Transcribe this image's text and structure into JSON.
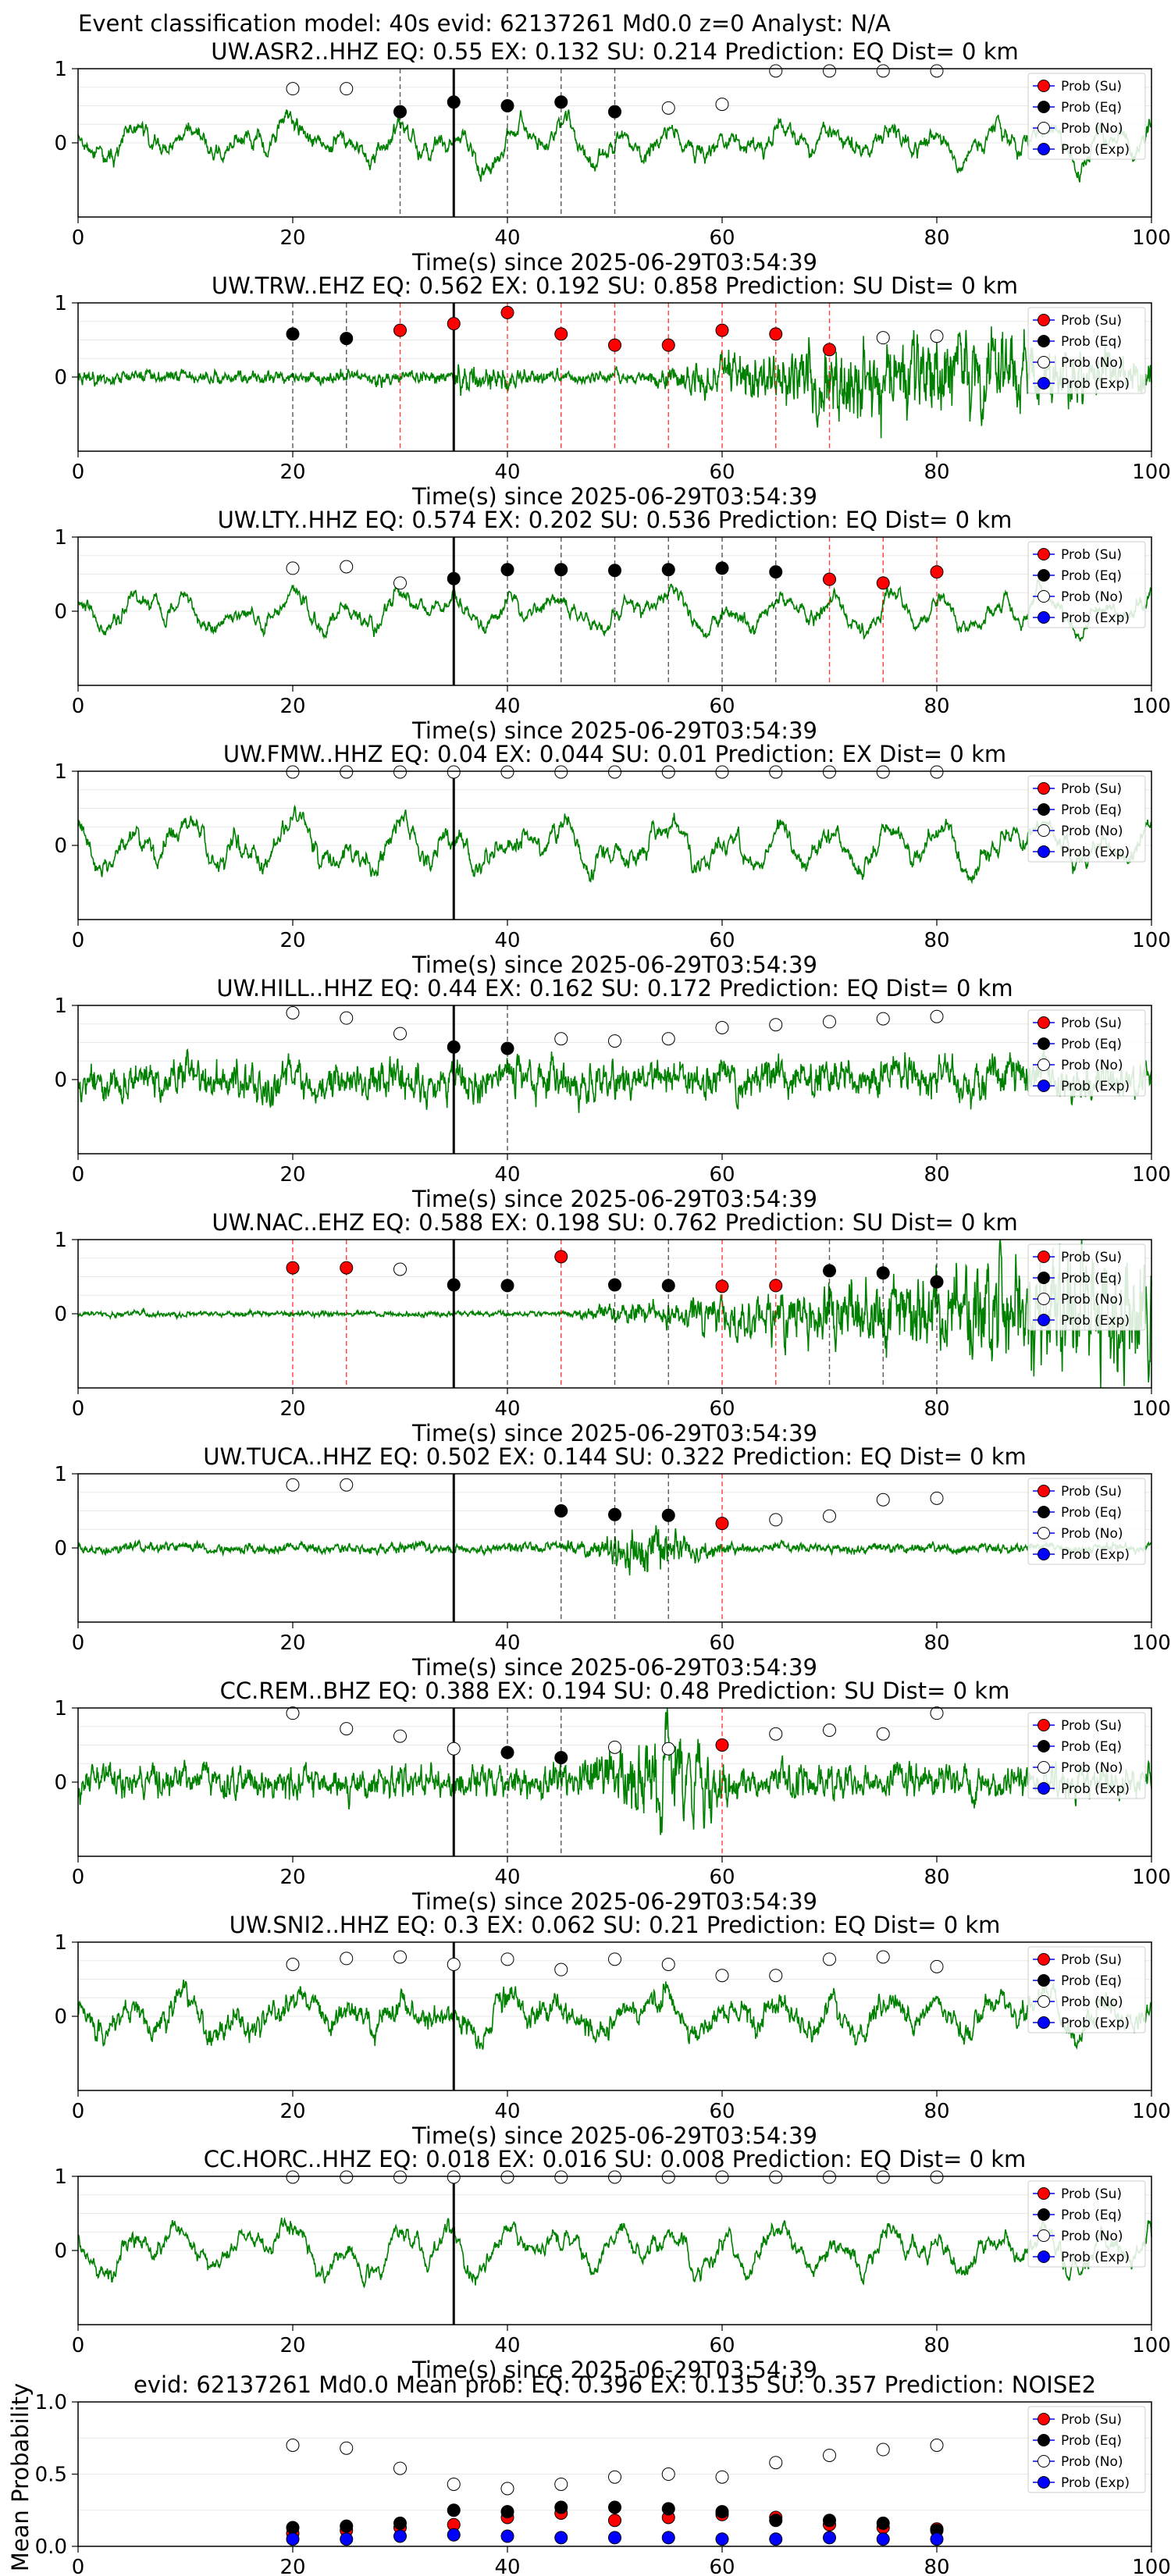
{
  "suptitle": "Event classification model: 40s evid: 62137261 Md0.0 z=0 Analyst: N/A",
  "legend_labels": [
    "Prob (Su)",
    "Prob (Eq)",
    "Prob (No)",
    "Prob (Exp)"
  ],
  "colors": {
    "waveform": "#008000",
    "su": "#ff0000",
    "eq": "#000000",
    "no": "#ffffff",
    "exp": "#0000ff",
    "eq_line": "#000000",
    "su_line": "#ff0000",
    "pick_line": "#000000"
  },
  "chart_data": [
    {
      "type": "line",
      "title": "UW.ASR2..HHZ   EQ: 0.55  EX: 0.132  SU: 0.214   Prediction: EQ    Dist= 0 km",
      "xlabel": "Time(s) since 2025-06-29T03:54:39",
      "xlim": [
        0,
        100
      ],
      "ylim": [
        -1,
        1
      ],
      "xticks": [
        0,
        20,
        40,
        60,
        80,
        100
      ],
      "yticks": [
        1,
        0
      ],
      "pick_time": 35,
      "markers": [
        {
          "t": 20,
          "cls": "no",
          "p": 0.73
        },
        {
          "t": 25,
          "cls": "no",
          "p": 0.73
        },
        {
          "t": 30,
          "cls": "eq",
          "p": 0.42
        },
        {
          "t": 35,
          "cls": "eq",
          "p": 0.55
        },
        {
          "t": 40,
          "cls": "eq",
          "p": 0.5
        },
        {
          "t": 45,
          "cls": "eq",
          "p": 0.55
        },
        {
          "t": 50,
          "cls": "eq",
          "p": 0.42
        },
        {
          "t": 55,
          "cls": "no",
          "p": 0.47
        },
        {
          "t": 60,
          "cls": "no",
          "p": 0.52
        },
        {
          "t": 65,
          "cls": "no",
          "p": 0.97
        },
        {
          "t": 70,
          "cls": "no",
          "p": 0.97
        },
        {
          "t": 75,
          "cls": "no",
          "p": 0.97
        },
        {
          "t": 80,
          "cls": "no",
          "p": 0.97
        }
      ],
      "waveform": {
        "style": "mixed",
        "seed": 11,
        "amp": 0.5
      }
    },
    {
      "type": "line",
      "title": "UW.TRW..EHZ   EQ: 0.562  EX: 0.192  SU: 0.858   Prediction: SU    Dist= 0 km",
      "xlabel": "Time(s) since 2025-06-29T03:54:39",
      "xlim": [
        0,
        100
      ],
      "ylim": [
        -1,
        1
      ],
      "xticks": [
        0,
        20,
        40,
        60,
        80,
        100
      ],
      "yticks": [
        1,
        0
      ],
      "pick_time": 35,
      "markers": [
        {
          "t": 20,
          "cls": "eq",
          "p": 0.58
        },
        {
          "t": 25,
          "cls": "eq",
          "p": 0.52
        },
        {
          "t": 30,
          "cls": "su",
          "p": 0.63
        },
        {
          "t": 35,
          "cls": "su",
          "p": 0.72
        },
        {
          "t": 40,
          "cls": "su",
          "p": 0.87
        },
        {
          "t": 45,
          "cls": "su",
          "p": 0.58
        },
        {
          "t": 50,
          "cls": "su",
          "p": 0.43
        },
        {
          "t": 55,
          "cls": "su",
          "p": 0.43
        },
        {
          "t": 60,
          "cls": "su",
          "p": 0.63
        },
        {
          "t": 65,
          "cls": "su",
          "p": 0.58
        },
        {
          "t": 70,
          "cls": "su",
          "p": 0.37
        },
        {
          "t": 75,
          "cls": "no",
          "p": 0.53
        },
        {
          "t": 80,
          "cls": "no",
          "p": 0.55
        }
      ],
      "waveform": {
        "style": "surface",
        "seed": 23,
        "amp": 0.7
      }
    },
    {
      "type": "line",
      "title": "UW.LTY..HHZ   EQ: 0.574  EX: 0.202  SU: 0.536   Prediction: EQ    Dist= 0 km",
      "xlabel": "Time(s) since 2025-06-29T03:54:39",
      "xlim": [
        0,
        100
      ],
      "ylim": [
        -1,
        1
      ],
      "xticks": [
        0,
        20,
        40,
        60,
        80,
        100
      ],
      "yticks": [
        1,
        0
      ],
      "pick_time": 35,
      "markers": [
        {
          "t": 20,
          "cls": "no",
          "p": 0.58
        },
        {
          "t": 25,
          "cls": "no",
          "p": 0.6
        },
        {
          "t": 30,
          "cls": "no",
          "p": 0.38
        },
        {
          "t": 35,
          "cls": "eq",
          "p": 0.44
        },
        {
          "t": 40,
          "cls": "eq",
          "p": 0.56
        },
        {
          "t": 45,
          "cls": "eq",
          "p": 0.56
        },
        {
          "t": 50,
          "cls": "eq",
          "p": 0.55
        },
        {
          "t": 55,
          "cls": "eq",
          "p": 0.56
        },
        {
          "t": 60,
          "cls": "eq",
          "p": 0.58
        },
        {
          "t": 65,
          "cls": "eq",
          "p": 0.53
        },
        {
          "t": 70,
          "cls": "su",
          "p": 0.43
        },
        {
          "t": 75,
          "cls": "su",
          "p": 0.38
        },
        {
          "t": 80,
          "cls": "su",
          "p": 0.53
        }
      ],
      "waveform": {
        "style": "smooth",
        "seed": 37,
        "amp": 0.45
      }
    },
    {
      "type": "line",
      "title": "UW.FMW..HHZ   EQ: 0.04  EX: 0.044  SU: 0.01   Prediction: EX    Dist= 0 km",
      "xlabel": "Time(s) since 2025-06-29T03:54:39",
      "xlim": [
        0,
        100
      ],
      "ylim": [
        -1,
        1
      ],
      "xticks": [
        0,
        20,
        40,
        60,
        80,
        100
      ],
      "yticks": [
        1,
        0
      ],
      "pick_time": 35,
      "markers": [
        {
          "t": 20,
          "cls": "no",
          "p": 0.99
        },
        {
          "t": 25,
          "cls": "no",
          "p": 0.99
        },
        {
          "t": 30,
          "cls": "no",
          "p": 0.99
        },
        {
          "t": 35,
          "cls": "no",
          "p": 0.99
        },
        {
          "t": 40,
          "cls": "no",
          "p": 0.99
        },
        {
          "t": 45,
          "cls": "no",
          "p": 0.99
        },
        {
          "t": 50,
          "cls": "no",
          "p": 0.99
        },
        {
          "t": 55,
          "cls": "no",
          "p": 0.99
        },
        {
          "t": 60,
          "cls": "no",
          "p": 0.99
        },
        {
          "t": 65,
          "cls": "no",
          "p": 0.99
        },
        {
          "t": 70,
          "cls": "no",
          "p": 0.99
        },
        {
          "t": 75,
          "cls": "no",
          "p": 0.99
        },
        {
          "t": 80,
          "cls": "no",
          "p": 0.99
        }
      ],
      "waveform": {
        "style": "smooth",
        "seed": 41,
        "amp": 0.6
      }
    },
    {
      "type": "line",
      "title": "UW.HILL..HHZ   EQ: 0.44  EX: 0.162  SU: 0.172   Prediction: EQ    Dist= 0 km",
      "xlabel": "Time(s) since 2025-06-29T03:54:39",
      "xlim": [
        0,
        100
      ],
      "ylim": [
        -1,
        1
      ],
      "xticks": [
        0,
        20,
        40,
        60,
        80,
        100
      ],
      "yticks": [
        1,
        0
      ],
      "pick_time": 35,
      "markers": [
        {
          "t": 20,
          "cls": "no",
          "p": 0.9
        },
        {
          "t": 25,
          "cls": "no",
          "p": 0.83
        },
        {
          "t": 30,
          "cls": "no",
          "p": 0.62
        },
        {
          "t": 35,
          "cls": "eq",
          "p": 0.44
        },
        {
          "t": 40,
          "cls": "eq",
          "p": 0.42
        },
        {
          "t": 45,
          "cls": "no",
          "p": 0.55
        },
        {
          "t": 50,
          "cls": "no",
          "p": 0.52
        },
        {
          "t": 55,
          "cls": "no",
          "p": 0.55
        },
        {
          "t": 60,
          "cls": "no",
          "p": 0.7
        },
        {
          "t": 65,
          "cls": "no",
          "p": 0.74
        },
        {
          "t": 70,
          "cls": "no",
          "p": 0.78
        },
        {
          "t": 75,
          "cls": "no",
          "p": 0.82
        },
        {
          "t": 80,
          "cls": "no",
          "p": 0.85
        }
      ],
      "waveform": {
        "style": "noisy",
        "seed": 53,
        "amp": 0.45
      }
    },
    {
      "type": "line",
      "title": "UW.NAC..EHZ   EQ: 0.588  EX: 0.198  SU: 0.762   Prediction: SU    Dist= 0 km",
      "xlabel": "Time(s) since 2025-06-29T03:54:39",
      "xlim": [
        0,
        100
      ],
      "ylim": [
        -1,
        1
      ],
      "xticks": [
        0,
        20,
        40,
        60,
        80,
        100
      ],
      "yticks": [
        1,
        0
      ],
      "pick_time": 35,
      "markers": [
        {
          "t": 20,
          "cls": "su",
          "p": 0.62
        },
        {
          "t": 25,
          "cls": "su",
          "p": 0.62
        },
        {
          "t": 30,
          "cls": "no",
          "p": 0.6
        },
        {
          "t": 35,
          "cls": "eq",
          "p": 0.39
        },
        {
          "t": 40,
          "cls": "eq",
          "p": 0.38
        },
        {
          "t": 45,
          "cls": "su",
          "p": 0.77
        },
        {
          "t": 50,
          "cls": "eq",
          "p": 0.39
        },
        {
          "t": 55,
          "cls": "eq",
          "p": 0.38
        },
        {
          "t": 60,
          "cls": "su",
          "p": 0.37
        },
        {
          "t": 65,
          "cls": "su",
          "p": 0.38
        },
        {
          "t": 70,
          "cls": "eq",
          "p": 0.58
        },
        {
          "t": 75,
          "cls": "eq",
          "p": 0.55
        },
        {
          "t": 80,
          "cls": "eq",
          "p": 0.43
        }
      ],
      "waveform": {
        "style": "growing",
        "seed": 67,
        "amp": 0.7
      }
    },
    {
      "type": "line",
      "title": "UW.TUCA..HHZ   EQ: 0.502  EX: 0.144  SU: 0.322   Prediction: EQ    Dist= 0 km",
      "xlabel": "Time(s) since 2025-06-29T03:54:39",
      "xlim": [
        0,
        100
      ],
      "ylim": [
        -1,
        1
      ],
      "xticks": [
        0,
        20,
        40,
        60,
        80,
        100
      ],
      "yticks": [
        1,
        0
      ],
      "pick_time": 35,
      "markers": [
        {
          "t": 20,
          "cls": "no",
          "p": 0.85
        },
        {
          "t": 25,
          "cls": "no",
          "p": 0.85
        },
        {
          "t": 45,
          "cls": "eq",
          "p": 0.5
        },
        {
          "t": 50,
          "cls": "eq",
          "p": 0.45
        },
        {
          "t": 55,
          "cls": "eq",
          "p": 0.44
        },
        {
          "t": 60,
          "cls": "su",
          "p": 0.33
        },
        {
          "t": 65,
          "cls": "no",
          "p": 0.38
        },
        {
          "t": 70,
          "cls": "no",
          "p": 0.43
        },
        {
          "t": 75,
          "cls": "no",
          "p": 0.65
        },
        {
          "t": 80,
          "cls": "no",
          "p": 0.67
        }
      ],
      "waveform": {
        "style": "burst",
        "seed": 79,
        "amp": 0.3
      }
    },
    {
      "type": "line",
      "title": "CC.REM..BHZ   EQ: 0.388  EX: 0.194  SU: 0.48   Prediction: SU    Dist= 0 km",
      "xlabel": "Time(s) since 2025-06-29T03:54:39",
      "xlim": [
        0,
        100
      ],
      "ylim": [
        -1,
        1
      ],
      "xticks": [
        0,
        20,
        40,
        60,
        80,
        100
      ],
      "yticks": [
        1,
        0
      ],
      "pick_time": 35,
      "markers": [
        {
          "t": 20,
          "cls": "no",
          "p": 0.93
        },
        {
          "t": 25,
          "cls": "no",
          "p": 0.72
        },
        {
          "t": 30,
          "cls": "no",
          "p": 0.62
        },
        {
          "t": 35,
          "cls": "no",
          "p": 0.45
        },
        {
          "t": 40,
          "cls": "eq",
          "p": 0.4
        },
        {
          "t": 45,
          "cls": "eq",
          "p": 0.33
        },
        {
          "t": 50,
          "cls": "no",
          "p": 0.47
        },
        {
          "t": 55,
          "cls": "no",
          "p": 0.45
        },
        {
          "t": 60,
          "cls": "su",
          "p": 0.5
        },
        {
          "t": 65,
          "cls": "no",
          "p": 0.65
        },
        {
          "t": 70,
          "cls": "no",
          "p": 0.7
        },
        {
          "t": 75,
          "cls": "no",
          "p": 0.65
        },
        {
          "t": 80,
          "cls": "no",
          "p": 0.93
        }
      ],
      "waveform": {
        "style": "burstnoisy",
        "seed": 97,
        "amp": 0.45
      }
    },
    {
      "type": "line",
      "title": "UW.SNI2..HHZ   EQ: 0.3  EX: 0.062  SU: 0.21   Prediction: EQ    Dist= 0 km",
      "xlabel": "Time(s) since 2025-06-29T03:54:39",
      "xlim": [
        0,
        100
      ],
      "ylim": [
        -1,
        1
      ],
      "xticks": [
        0,
        20,
        40,
        60,
        80,
        100
      ],
      "yticks": [
        1,
        0
      ],
      "pick_time": 35,
      "markers": [
        {
          "t": 20,
          "cls": "no",
          "p": 0.7
        },
        {
          "t": 25,
          "cls": "no",
          "p": 0.78
        },
        {
          "t": 30,
          "cls": "no",
          "p": 0.8
        },
        {
          "t": 35,
          "cls": "no",
          "p": 0.7
        },
        {
          "t": 40,
          "cls": "no",
          "p": 0.77
        },
        {
          "t": 45,
          "cls": "no",
          "p": 0.63
        },
        {
          "t": 50,
          "cls": "no",
          "p": 0.77
        },
        {
          "t": 55,
          "cls": "no",
          "p": 0.7
        },
        {
          "t": 60,
          "cls": "no",
          "p": 0.55
        },
        {
          "t": 65,
          "cls": "no",
          "p": 0.55
        },
        {
          "t": 70,
          "cls": "no",
          "p": 0.77
        },
        {
          "t": 75,
          "cls": "no",
          "p": 0.8
        },
        {
          "t": 80,
          "cls": "no",
          "p": 0.67
        }
      ],
      "waveform": {
        "style": "smoothnoisy",
        "seed": 109,
        "amp": 0.55
      }
    },
    {
      "type": "line",
      "title": "CC.HORC..HHZ   EQ: 0.018  EX: 0.016  SU: 0.008   Prediction: EQ    Dist= 0 km",
      "xlabel": "Time(s) since 2025-06-29T03:54:39",
      "xlim": [
        0,
        100
      ],
      "ylim": [
        -1,
        1
      ],
      "xticks": [
        0,
        20,
        40,
        60,
        80,
        100
      ],
      "yticks": [
        1,
        0
      ],
      "pick_time": 35,
      "markers": [
        {
          "t": 20,
          "cls": "no",
          "p": 0.99
        },
        {
          "t": 25,
          "cls": "no",
          "p": 0.99
        },
        {
          "t": 30,
          "cls": "no",
          "p": 0.99
        },
        {
          "t": 35,
          "cls": "no",
          "p": 0.99
        },
        {
          "t": 40,
          "cls": "no",
          "p": 0.99
        },
        {
          "t": 45,
          "cls": "no",
          "p": 0.99
        },
        {
          "t": 50,
          "cls": "no",
          "p": 0.99
        },
        {
          "t": 55,
          "cls": "no",
          "p": 0.99
        },
        {
          "t": 60,
          "cls": "no",
          "p": 0.99
        },
        {
          "t": 65,
          "cls": "no",
          "p": 0.99
        },
        {
          "t": 70,
          "cls": "no",
          "p": 0.99
        },
        {
          "t": 75,
          "cls": "no",
          "p": 0.99
        },
        {
          "t": 80,
          "cls": "no",
          "p": 0.99
        }
      ],
      "waveform": {
        "style": "smooth",
        "seed": 127,
        "amp": 0.55
      }
    },
    {
      "type": "scatter",
      "title": "evid: 62137261  Md0.0   Mean prob:   EQ: 0.396  EX: 0.135  SU: 0.357   Prediction: NOISE2",
      "ylabel": "Mean Probability",
      "xlim": [
        0,
        100
      ],
      "ylim": [
        0,
        1
      ],
      "xticks": [
        0,
        20,
        40,
        60,
        80,
        100
      ],
      "yticks": [
        1.0,
        0.5,
        0.0
      ],
      "ytick_labels": [
        "1.0",
        "0.5",
        "0.0"
      ],
      "x": [
        20,
        25,
        30,
        35,
        40,
        45,
        50,
        55,
        60,
        65,
        70,
        75,
        80
      ],
      "series": [
        {
          "name": "Prob (Su)",
          "cls": "su",
          "values": [
            0.09,
            0.11,
            0.13,
            0.15,
            0.2,
            0.23,
            0.18,
            0.2,
            0.22,
            0.2,
            0.15,
            0.13,
            0.12
          ]
        },
        {
          "name": "Prob (Eq)",
          "cls": "eq",
          "values": [
            0.13,
            0.14,
            0.16,
            0.25,
            0.24,
            0.27,
            0.27,
            0.26,
            0.24,
            0.18,
            0.18,
            0.16,
            0.11
          ]
        },
        {
          "name": "Prob (No)",
          "cls": "no",
          "values": [
            0.7,
            0.68,
            0.54,
            0.43,
            0.4,
            0.43,
            0.48,
            0.5,
            0.48,
            0.58,
            0.63,
            0.67,
            0.7
          ]
        },
        {
          "name": "Prob (Exp)",
          "cls": "exp",
          "values": [
            0.05,
            0.05,
            0.07,
            0.08,
            0.07,
            0.06,
            0.06,
            0.06,
            0.05,
            0.05,
            0.06,
            0.05,
            0.05
          ]
        }
      ]
    }
  ]
}
